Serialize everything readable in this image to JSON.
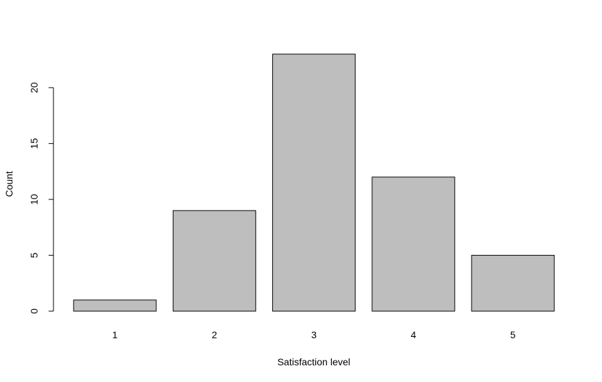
{
  "chart_data": {
    "type": "bar",
    "title": "",
    "xlabel": "Satisfaction level",
    "ylabel": "Count",
    "categories": [
      "1",
      "2",
      "3",
      "4",
      "5"
    ],
    "values": [
      1,
      9,
      23,
      12,
      5
    ],
    "ylim": [
      0,
      23
    ],
    "yticks": [
      0,
      5,
      10,
      15,
      20
    ],
    "grid": false,
    "legend": "none",
    "bar_color": "#bebebe",
    "bar_border_color": "#000000"
  }
}
